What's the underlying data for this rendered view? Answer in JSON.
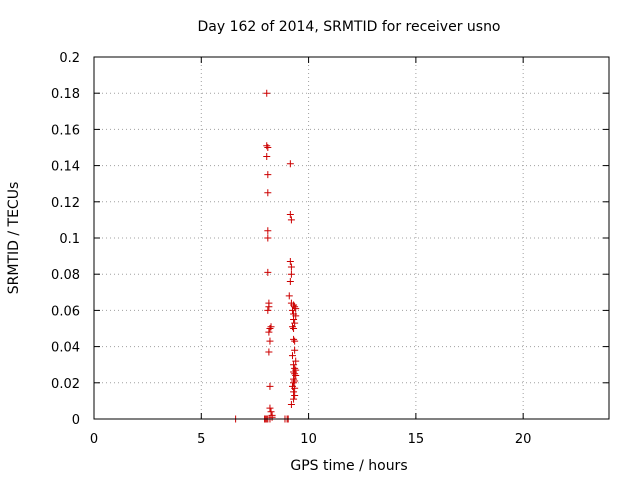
{
  "chart_data": {
    "type": "scatter",
    "title": "Day 162 of 2014, SRMTID for receiver usno",
    "xlabel": "GPS time / hours",
    "ylabel": "SRMTID / TECUs",
    "xlim": [
      0,
      24
    ],
    "ylim": [
      0,
      0.2
    ],
    "grid": true,
    "xticks": [
      0,
      5,
      10,
      15,
      20
    ],
    "yticks": [
      0,
      0.02,
      0.04,
      0.06,
      0.08,
      0.1,
      0.12,
      0.14,
      0.16,
      0.18,
      0.2
    ],
    "xtick_labels": [
      "0",
      "5",
      "10",
      "15",
      "20"
    ],
    "ytick_labels": [
      "0",
      "0.02",
      "0.04",
      "0.06",
      "0.08",
      "0.1",
      "0.12",
      "0.14",
      "0.16",
      "0.18",
      "0.2"
    ],
    "series": [
      {
        "name": "SRMTID",
        "color": "#cc0000",
        "marker": "plus",
        "points": [
          [
            6.6,
            0.0
          ],
          [
            7.95,
            0.0
          ],
          [
            8.0,
            0.0
          ],
          [
            8.05,
            0.0
          ],
          [
            8.1,
            0.0
          ],
          [
            8.2,
            0.0
          ],
          [
            8.3,
            0.001
          ],
          [
            8.9,
            0.0
          ],
          [
            9.0,
            0.0
          ],
          [
            9.05,
            0.0
          ],
          [
            8.05,
            0.18
          ],
          [
            8.05,
            0.151
          ],
          [
            8.1,
            0.15
          ],
          [
            8.05,
            0.145
          ],
          [
            8.1,
            0.135
          ],
          [
            8.1,
            0.125
          ],
          [
            8.1,
            0.104
          ],
          [
            8.1,
            0.1
          ],
          [
            8.1,
            0.081
          ],
          [
            8.15,
            0.064
          ],
          [
            8.15,
            0.062
          ],
          [
            8.1,
            0.06
          ],
          [
            8.25,
            0.051
          ],
          [
            8.2,
            0.05
          ],
          [
            8.15,
            0.048
          ],
          [
            8.2,
            0.043
          ],
          [
            8.15,
            0.037
          ],
          [
            8.2,
            0.018
          ],
          [
            8.2,
            0.006
          ],
          [
            8.25,
            0.004
          ],
          [
            8.3,
            0.002
          ],
          [
            9.15,
            0.141
          ],
          [
            9.15,
            0.113
          ],
          [
            9.2,
            0.11
          ],
          [
            9.15,
            0.087
          ],
          [
            9.2,
            0.084
          ],
          [
            9.2,
            0.08
          ],
          [
            9.15,
            0.076
          ],
          [
            9.1,
            0.068
          ],
          [
            9.2,
            0.064
          ],
          [
            9.3,
            0.063
          ],
          [
            9.35,
            0.062
          ],
          [
            9.4,
            0.061
          ],
          [
            9.25,
            0.06
          ],
          [
            9.3,
            0.058
          ],
          [
            9.4,
            0.057
          ],
          [
            9.3,
            0.055
          ],
          [
            9.35,
            0.053
          ],
          [
            9.25,
            0.051
          ],
          [
            9.3,
            0.05
          ],
          [
            9.3,
            0.044
          ],
          [
            9.35,
            0.043
          ],
          [
            9.35,
            0.038
          ],
          [
            9.25,
            0.035
          ],
          [
            9.4,
            0.032
          ],
          [
            9.3,
            0.03
          ],
          [
            9.35,
            0.028
          ],
          [
            9.4,
            0.027
          ],
          [
            9.3,
            0.026
          ],
          [
            9.35,
            0.025
          ],
          [
            9.4,
            0.024
          ],
          [
            9.3,
            0.022
          ],
          [
            9.35,
            0.021
          ],
          [
            9.3,
            0.02
          ],
          [
            9.25,
            0.018
          ],
          [
            9.35,
            0.017
          ],
          [
            9.3,
            0.015
          ],
          [
            9.35,
            0.013
          ],
          [
            9.3,
            0.011
          ],
          [
            9.2,
            0.008
          ]
        ]
      }
    ]
  }
}
